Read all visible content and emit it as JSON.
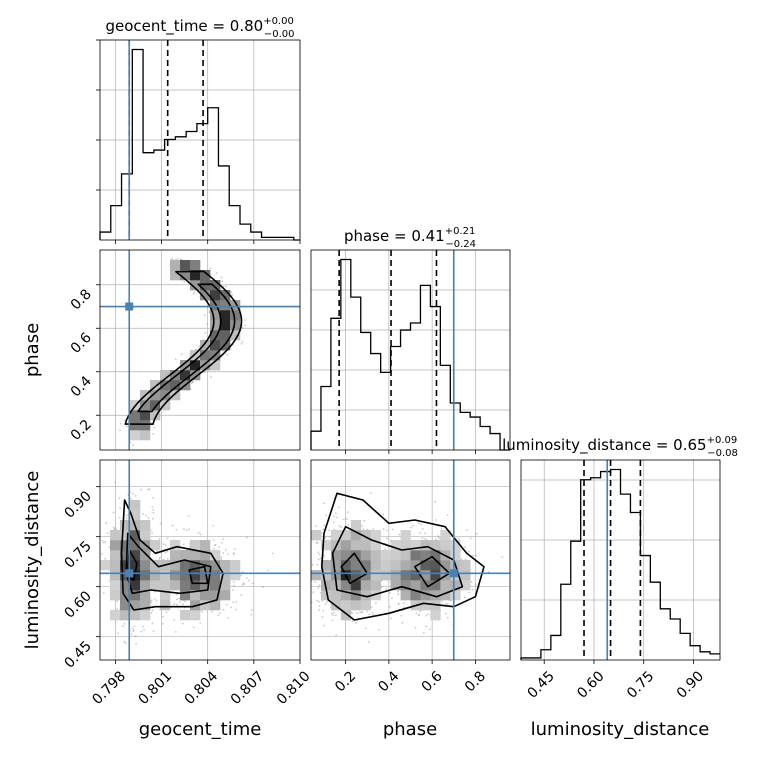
{
  "chart_data": [
    {
      "type": "histogram",
      "panel": "geocent_time",
      "title": {
        "param": "geocent_time",
        "median": "0.80",
        "upper": "+0.00",
        "lower": "−0.00"
      },
      "x_range": [
        0.797,
        0.81
      ],
      "bin_edges": [
        0.797,
        0.7977,
        0.7984,
        0.7991,
        0.7998,
        0.8005,
        0.8012,
        0.8019,
        0.8026,
        0.8033,
        0.804,
        0.8047,
        0.8054,
        0.8061,
        0.8068,
        0.8075,
        0.8082,
        0.8089,
        0.8096,
        0.8103
      ],
      "counts": [
        0.03,
        0.13,
        0.25,
        0.72,
        0.33,
        0.34,
        0.38,
        0.39,
        0.41,
        0.44,
        0.5,
        0.28,
        0.13,
        0.06,
        0.03,
        0.01,
        0.01,
        0.01,
        0.0
      ],
      "quantiles": [
        0.7989,
        0.8014,
        0.8037
      ],
      "truth": 0.7989
    },
    {
      "type": "histogram",
      "panel": "phase",
      "title": {
        "param": "phase",
        "median": "0.41",
        "upper": "+0.21",
        "lower": "−0.24"
      },
      "x_range": [
        0.04,
        0.96
      ],
      "bin_edges": [
        0.04,
        0.086,
        0.132,
        0.178,
        0.224,
        0.27,
        0.316,
        0.362,
        0.408,
        0.454,
        0.5,
        0.546,
        0.592,
        0.638,
        0.684,
        0.73,
        0.776,
        0.822,
        0.868,
        0.914,
        0.96
      ],
      "counts": [
        0.08,
        0.27,
        0.56,
        0.81,
        0.65,
        0.5,
        0.41,
        0.33,
        0.44,
        0.51,
        0.54,
        0.7,
        0.61,
        0.36,
        0.2,
        0.16,
        0.14,
        0.1,
        0.07,
        0.0
      ],
      "quantiles": [
        0.17,
        0.41,
        0.62
      ],
      "truth": 0.7
    },
    {
      "type": "histogram",
      "panel": "luminosity_distance",
      "title": {
        "param": "luminosity_distance",
        "median": "0.65",
        "upper": "+0.09",
        "lower": "−0.08"
      },
      "x_range": [
        0.38,
        0.98
      ],
      "bin_edges": [
        0.38,
        0.41,
        0.44,
        0.47,
        0.5,
        0.53,
        0.56,
        0.59,
        0.62,
        0.65,
        0.68,
        0.71,
        0.74,
        0.77,
        0.8,
        0.83,
        0.86,
        0.89,
        0.92,
        0.95,
        0.98
      ],
      "counts": [
        0.01,
        0.01,
        0.05,
        0.12,
        0.37,
        0.58,
        0.88,
        0.89,
        0.92,
        0.93,
        0.81,
        0.72,
        0.51,
        0.38,
        0.25,
        0.2,
        0.13,
        0.07,
        0.04,
        0.03
      ],
      "quantiles": [
        0.57,
        0.65,
        0.74
      ],
      "truth": 0.64
    },
    {
      "type": "scatter-contour",
      "panel": "phase vs geocent_time",
      "x_range": [
        0.797,
        0.81
      ],
      "y_range": [
        0.04,
        0.96
      ],
      "truth": [
        0.7989,
        0.7
      ]
    },
    {
      "type": "scatter-contour",
      "panel": "luminosity_distance vs geocent_time",
      "x_range": [
        0.797,
        0.81
      ],
      "y_range": [
        0.38,
        0.98
      ],
      "truth": [
        0.7989,
        0.64
      ]
    },
    {
      "type": "scatter-contour",
      "panel": "luminosity_distance vs phase",
      "x_range": [
        0.04,
        0.96
      ],
      "y_range": [
        0.38,
        0.98
      ],
      "truth": [
        0.7,
        0.64
      ]
    }
  ],
  "axes": {
    "xlabels": [
      "geocent_time",
      "phase",
      "luminosity_distance"
    ],
    "ylabels": [
      "phase",
      "luminosity_distance"
    ],
    "geocent_ticks": [
      "0.798",
      "0.801",
      "0.804",
      "0.807",
      "0.810"
    ],
    "geocent_tick_values": [
      0.798,
      0.801,
      0.804,
      0.807,
      0.81
    ],
    "phase_ticks": [
      "0.2",
      "0.4",
      "0.6",
      "0.8"
    ],
    "phase_tick_values": [
      0.2,
      0.4,
      0.6,
      0.8
    ],
    "dist_ticks": [
      "0.45",
      "0.60",
      "0.75",
      "0.90"
    ],
    "dist_tick_values": [
      0.45,
      0.6,
      0.75,
      0.9
    ]
  },
  "colors": {
    "truth": "#4682b4",
    "hist": "#000000",
    "grid": "#b0b0b0"
  }
}
